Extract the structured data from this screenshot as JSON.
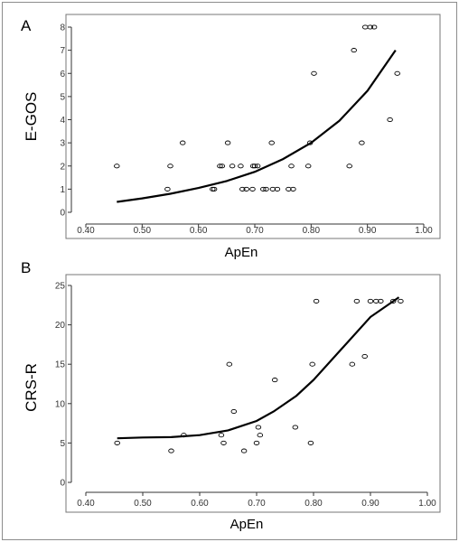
{
  "chart_data": [
    {
      "type": "scatter",
      "panel_label": "A",
      "xlabel": "ApEn",
      "ylabel": "E-GOS",
      "xlim": [
        0.35,
        1.05
      ],
      "ylim": [
        -0.5,
        8.5
      ],
      "xticks": [
        "0.40",
        "0.50",
        "0.60",
        "0.70",
        "0.80",
        "0.90",
        "1.00"
      ],
      "yticks": [
        "0",
        "1",
        "2",
        "3",
        "4",
        "5",
        "6",
        "7",
        "8"
      ],
      "grid": false,
      "points": [
        {
          "x": 0.455,
          "y": 2
        },
        {
          "x": 0.545,
          "y": 1
        },
        {
          "x": 0.55,
          "y": 2
        },
        {
          "x": 0.572,
          "y": 3
        },
        {
          "x": 0.625,
          "y": 1
        },
        {
          "x": 0.628,
          "y": 1
        },
        {
          "x": 0.638,
          "y": 2
        },
        {
          "x": 0.642,
          "y": 2
        },
        {
          "x": 0.652,
          "y": 3
        },
        {
          "x": 0.66,
          "y": 2
        },
        {
          "x": 0.675,
          "y": 2
        },
        {
          "x": 0.678,
          "y": 1
        },
        {
          "x": 0.685,
          "y": 1
        },
        {
          "x": 0.696,
          "y": 1
        },
        {
          "x": 0.697,
          "y": 2
        },
        {
          "x": 0.7,
          "y": 2
        },
        {
          "x": 0.705,
          "y": 2
        },
        {
          "x": 0.715,
          "y": 1
        },
        {
          "x": 0.72,
          "y": 1
        },
        {
          "x": 0.73,
          "y": 3
        },
        {
          "x": 0.732,
          "y": 1
        },
        {
          "x": 0.74,
          "y": 1
        },
        {
          "x": 0.76,
          "y": 1
        },
        {
          "x": 0.765,
          "y": 2
        },
        {
          "x": 0.768,
          "y": 1
        },
        {
          "x": 0.795,
          "y": 2
        },
        {
          "x": 0.798,
          "y": 3
        },
        {
          "x": 0.805,
          "y": 6
        },
        {
          "x": 0.868,
          "y": 2
        },
        {
          "x": 0.876,
          "y": 7
        },
        {
          "x": 0.89,
          "y": 3
        },
        {
          "x": 0.896,
          "y": 8
        },
        {
          "x": 0.905,
          "y": 8
        },
        {
          "x": 0.912,
          "y": 8
        },
        {
          "x": 0.94,
          "y": 4
        },
        {
          "x": 0.953,
          "y": 6
        }
      ],
      "fit_curve": [
        {
          "x": 0.455,
          "y": 0.45
        },
        {
          "x": 0.5,
          "y": 0.6
        },
        {
          "x": 0.55,
          "y": 0.8
        },
        {
          "x": 0.6,
          "y": 1.05
        },
        {
          "x": 0.65,
          "y": 1.35
        },
        {
          "x": 0.7,
          "y": 1.75
        },
        {
          "x": 0.75,
          "y": 2.3
        },
        {
          "x": 0.8,
          "y": 3.0
        },
        {
          "x": 0.85,
          "y": 3.95
        },
        {
          "x": 0.9,
          "y": 5.25
        },
        {
          "x": 0.95,
          "y": 7.0
        }
      ]
    },
    {
      "type": "scatter",
      "panel_label": "B",
      "xlabel": "ApEn",
      "ylabel": "CRS-R",
      "xlim": [
        0.35,
        1.05
      ],
      "ylim": [
        -1,
        26
      ],
      "xticks": [
        "0.40",
        "0.50",
        "0.60",
        "0.70",
        "0.80",
        "0.90",
        "1.00"
      ],
      "yticks": [
        "0",
        "5",
        "10",
        "15",
        "20",
        "25"
      ],
      "grid": false,
      "points": [
        {
          "x": 0.455,
          "y": 5
        },
        {
          "x": 0.55,
          "y": 4
        },
        {
          "x": 0.572,
          "y": 6
        },
        {
          "x": 0.638,
          "y": 6
        },
        {
          "x": 0.642,
          "y": 5
        },
        {
          "x": 0.652,
          "y": 15
        },
        {
          "x": 0.66,
          "y": 9
        },
        {
          "x": 0.678,
          "y": 4
        },
        {
          "x": 0.7,
          "y": 5
        },
        {
          "x": 0.703,
          "y": 7
        },
        {
          "x": 0.706,
          "y": 6
        },
        {
          "x": 0.732,
          "y": 13
        },
        {
          "x": 0.768,
          "y": 7
        },
        {
          "x": 0.795,
          "y": 5
        },
        {
          "x": 0.798,
          "y": 15
        },
        {
          "x": 0.805,
          "y": 23
        },
        {
          "x": 0.868,
          "y": 15
        },
        {
          "x": 0.876,
          "y": 23
        },
        {
          "x": 0.89,
          "y": 16
        },
        {
          "x": 0.9,
          "y": 23
        },
        {
          "x": 0.91,
          "y": 23
        },
        {
          "x": 0.918,
          "y": 23
        },
        {
          "x": 0.94,
          "y": 23
        },
        {
          "x": 0.953,
          "y": 23
        }
      ],
      "fit_curve": [
        {
          "x": 0.455,
          "y": 5.6
        },
        {
          "x": 0.5,
          "y": 5.7
        },
        {
          "x": 0.55,
          "y": 5.75
        },
        {
          "x": 0.6,
          "y": 6.0
        },
        {
          "x": 0.65,
          "y": 6.6
        },
        {
          "x": 0.7,
          "y": 7.8
        },
        {
          "x": 0.73,
          "y": 9.0
        },
        {
          "x": 0.77,
          "y": 11.0
        },
        {
          "x": 0.8,
          "y": 13.0
        },
        {
          "x": 0.85,
          "y": 17.0
        },
        {
          "x": 0.9,
          "y": 21.0
        },
        {
          "x": 0.95,
          "y": 23.5
        }
      ]
    }
  ]
}
